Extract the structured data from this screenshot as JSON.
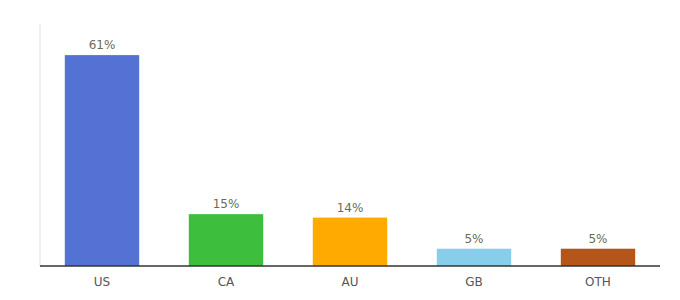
{
  "chart_data": {
    "type": "bar",
    "categories": [
      "US",
      "CA",
      "AU",
      "GB",
      "OTH"
    ],
    "values": [
      61,
      15,
      14,
      5,
      5
    ],
    "value_labels": [
      "61%",
      "15%",
      "14%",
      "5%",
      "5%"
    ],
    "colors": [
      "#5472d3",
      "#3dbf3d",
      "#ffaa00",
      "#87ceeb",
      "#b5551a"
    ],
    "ylim": [
      0,
      70
    ],
    "data_labels": true,
    "tick_labels": "x"
  }
}
